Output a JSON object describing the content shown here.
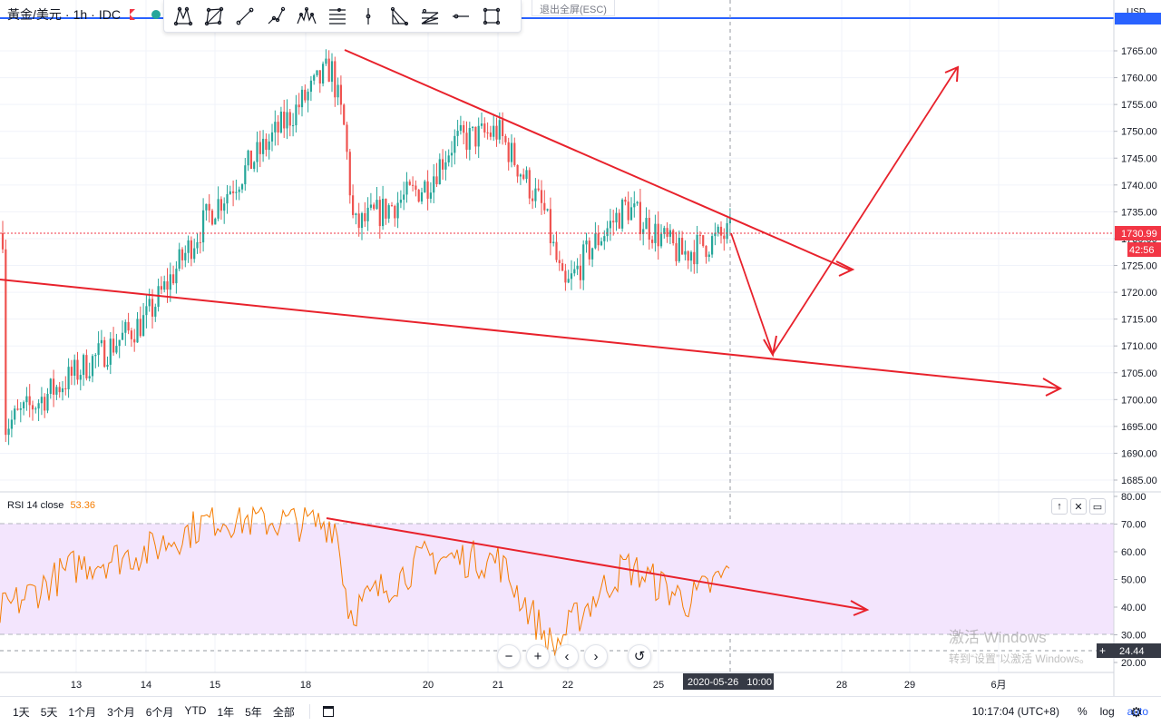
{
  "symbol": {
    "name": "黃金/美元",
    "interval": "1h",
    "exchange": "IDC"
  },
  "toolbar": {
    "exit_fullscreen_hint": "退出全屏(ESC)",
    "tools": [
      "xabcd-pattern-icon",
      "cypher-pattern-icon",
      "trend-line-icon",
      "path-icon",
      "head-shoulders-icon",
      "fib-lines-icon",
      "vertical-line-icon",
      "abcd-pattern-icon",
      "fan-lines-icon",
      "horizontal-ray-icon",
      "rectangle-icon"
    ]
  },
  "price_axis": {
    "currency": "USD",
    "ticks": [
      "1765.00",
      "1760.00",
      "1755.00",
      "1750.00",
      "1745.00",
      "1740.00",
      "1735.00",
      "1730.00",
      "1725.00",
      "1720.00",
      "1715.00",
      "1710.00",
      "1705.00",
      "1700.00",
      "1695.00",
      "1690.00",
      "1685.00"
    ],
    "current_price": "1730.99",
    "countdown": "42:56"
  },
  "rsi": {
    "label": "RSI 14 close",
    "value": "53.36",
    "ticks": [
      "80.00",
      "70.00",
      "60.00",
      "50.00",
      "40.00",
      "30.00",
      "20.00"
    ],
    "crosshair_value": "24.44"
  },
  "time_axis": {
    "labels": [
      "13",
      "14",
      "15",
      "18",
      "20",
      "21",
      "22",
      "25",
      "28",
      "29",
      "6月"
    ],
    "crosshair_label": "2020-05-26   10:00"
  },
  "navigation": [
    "zoom-out-icon",
    "zoom-in-icon",
    "scroll-left-icon",
    "scroll-right-icon",
    "reset-icon"
  ],
  "watermark": {
    "title": "激活 Windows",
    "subtitle": "转到“设置”以激活 Windows。"
  },
  "bottom_bar": {
    "ranges": [
      "1天",
      "5天",
      "1个月",
      "3个月",
      "6个月",
      "YTD",
      "1年",
      "5年",
      "全部"
    ],
    "time": "10:17:04 (UTC+8)",
    "percent_label": "%",
    "log_label": "log",
    "auto_label": "auto"
  },
  "colors": {
    "up": "#26a69a",
    "down": "#ef5350",
    "annotation": "#e8222c",
    "rsi_line": "#f57c00",
    "rsi_band": "#f3e5fd",
    "price_label": "#f23645",
    "horizontal_line": "#2962ff"
  },
  "chart_data": {
    "type": "candlestick",
    "y_axis": {
      "min": 1685,
      "max": 1765,
      "step": 5
    },
    "x_labels": [
      "13",
      "14",
      "15",
      "18",
      "20",
      "21",
      "22",
      "25",
      "28",
      "29",
      "6月"
    ],
    "current_price": 1730.99,
    "waypoints": [
      {
        "x": "12",
        "price": 1695
      },
      {
        "x": "13",
        "price": 1705
      },
      {
        "x": "14",
        "price": 1715
      },
      {
        "x": "15",
        "price": 1735
      },
      {
        "x": "18",
        "price": 1762
      },
      {
        "x": "18",
        "price": 1750
      },
      {
        "x": "18",
        "price": 1732
      },
      {
        "x": "20",
        "price": 1740
      },
      {
        "x": "20",
        "price": 1748
      },
      {
        "x": "21",
        "price": 1750
      },
      {
        "x": "22",
        "price": 1735
      },
      {
        "x": "22",
        "price": 1720
      },
      {
        "x": "22",
        "price": 1728
      },
      {
        "x": "25",
        "price": 1736
      },
      {
        "x": "25",
        "price": 1727
      },
      {
        "x": "26",
        "price": 1731
      }
    ],
    "rsi_series": {
      "name": "RSI 14 close",
      "range": [
        20,
        80
      ],
      "bands": [
        30,
        70
      ],
      "last_value": 53.36,
      "waypoints": [
        {
          "x": "12",
          "value": 38
        },
        {
          "x": "13",
          "value": 55
        },
        {
          "x": "14",
          "value": 60
        },
        {
          "x": "15",
          "value": 72
        },
        {
          "x": "18",
          "value": 70
        },
        {
          "x": "18",
          "value": 38
        },
        {
          "x": "20",
          "value": 58
        },
        {
          "x": "21",
          "value": 57
        },
        {
          "x": "22",
          "value": 25
        },
        {
          "x": "22",
          "value": 38
        },
        {
          "x": "25",
          "value": 55
        },
        {
          "x": "25",
          "value": 42
        },
        {
          "x": "26",
          "value": 53
        }
      ]
    }
  }
}
